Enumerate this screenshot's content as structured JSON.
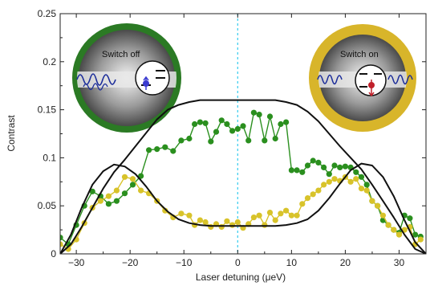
{
  "chart_data": {
    "type": "scatter",
    "xlabel": "Laser detuning (μeV)",
    "ylabel": "Contrast",
    "xlim": [
      -33,
      35
    ],
    "ylim": [
      0,
      0.25
    ],
    "x_ticks": [
      -30,
      -20,
      -10,
      0,
      10,
      20,
      30
    ],
    "x_tick_labels": [
      "−30",
      "−20",
      "−10",
      "0",
      "10",
      "20",
      "30"
    ],
    "y_ticks": [
      0,
      0.05,
      0.1,
      0.15,
      0.2,
      0.25
    ],
    "y_tick_labels": [
      "0",
      "0.05",
      "0.1",
      "0.15",
      "0.2",
      "0.25"
    ],
    "grid": false,
    "vline": {
      "x": 0,
      "color": "#33ccee",
      "style": "dashed"
    },
    "series": [
      {
        "color": "#2a8f1e",
        "style": "line+markers",
        "x": [
          -33,
          -31.5,
          -30,
          -28.5,
          -27,
          -25.5,
          -24,
          -22.5,
          -21,
          -19.5,
          -18,
          -16.5,
          -15,
          -13.5,
          -12,
          -10.5,
          -9,
          -8,
          -7,
          -6,
          -5,
          -4,
          -3,
          -2,
          -1,
          0,
          1,
          2,
          3,
          4,
          5,
          6,
          7,
          8,
          9,
          10,
          11,
          12,
          13,
          14,
          15,
          16,
          17,
          18,
          19,
          20,
          21,
          22,
          23,
          24,
          25,
          26,
          27,
          28,
          29,
          30,
          31,
          32,
          33,
          34
        ],
        "y": [
          0.017,
          0.01,
          0.03,
          0.05,
          0.065,
          0.06,
          0.052,
          0.055,
          0.063,
          0.072,
          0.081,
          0.108,
          0.109,
          0.111,
          0.107,
          0.118,
          0.12,
          0.135,
          0.137,
          0.136,
          0.117,
          0.127,
          0.139,
          0.135,
          0.128,
          0.13,
          0.133,
          0.118,
          0.147,
          0.145,
          0.118,
          0.143,
          0.12,
          0.135,
          0.137,
          0.087,
          0.087,
          0.085,
          0.092,
          0.097,
          0.095,
          0.09,
          0.083,
          0.092,
          0.09,
          0.091,
          0.09,
          0.085,
          0.08,
          0.072,
          0.055,
          0.05,
          0.035,
          0.03,
          0.025,
          0.022,
          0.04,
          0.037,
          0.02,
          0.018
        ]
      },
      {
        "color": "#d8c32a",
        "style": "line+markers",
        "x": [
          -33,
          -31.5,
          -30,
          -28.5,
          -27,
          -25.5,
          -24,
          -22.5,
          -21,
          -19.5,
          -18,
          -16.5,
          -15,
          -13.5,
          -12,
          -10.5,
          -9,
          -8,
          -7,
          -6,
          -5,
          -4,
          -3,
          -2,
          -1,
          0,
          1,
          2,
          3,
          4,
          5,
          6,
          7,
          8,
          9,
          10,
          11,
          12,
          13,
          14,
          15,
          16,
          17,
          18,
          19,
          20,
          21,
          22,
          23,
          24,
          25,
          26,
          27,
          28,
          29,
          30,
          31,
          32,
          33,
          34
        ],
        "y": [
          0.01,
          0.005,
          0.015,
          0.032,
          0.048,
          0.055,
          0.06,
          0.066,
          0.08,
          0.078,
          0.066,
          0.063,
          0.055,
          0.045,
          0.038,
          0.042,
          0.04,
          0.03,
          0.035,
          0.033,
          0.028,
          0.031,
          0.028,
          0.034,
          0.03,
          0.033,
          0.027,
          0.031,
          0.038,
          0.04,
          0.03,
          0.043,
          0.035,
          0.042,
          0.045,
          0.04,
          0.04,
          0.052,
          0.058,
          0.062,
          0.066,
          0.072,
          0.075,
          0.078,
          0.076,
          0.08,
          0.075,
          0.078,
          0.068,
          0.066,
          0.055,
          0.05,
          0.04,
          0.03,
          0.025,
          0.02,
          0.025,
          0.028,
          0.01,
          0.015
        ]
      },
      {
        "color": "#111111",
        "style": "line",
        "x": [
          -33,
          -31,
          -29,
          -27,
          -25,
          -23,
          -21,
          -19,
          -17,
          -15,
          -13,
          -11,
          -9,
          -7,
          -5,
          -3,
          -1,
          1,
          3,
          5,
          7,
          9,
          11,
          13,
          15,
          17,
          19,
          21,
          23,
          25,
          27,
          29,
          31,
          33,
          35
        ],
        "y": [
          0.0,
          0.01,
          0.028,
          0.048,
          0.068,
          0.085,
          0.098,
          0.112,
          0.126,
          0.14,
          0.15,
          0.155,
          0.158,
          0.16,
          0.16,
          0.16,
          0.16,
          0.16,
          0.16,
          0.16,
          0.16,
          0.158,
          0.155,
          0.148,
          0.138,
          0.125,
          0.112,
          0.1,
          0.088,
          0.072,
          0.055,
          0.038,
          0.02,
          0.005,
          0.0
        ]
      },
      {
        "color": "#111111",
        "style": "line",
        "x": [
          -33,
          -31,
          -29,
          -27,
          -25,
          -23,
          -21,
          -19,
          -17,
          -15,
          -13,
          -11,
          -9,
          -7,
          -5,
          -3,
          -1,
          1,
          3,
          5,
          7,
          9,
          11,
          13,
          15,
          17,
          19,
          21,
          23,
          25,
          27,
          29,
          31,
          33,
          35
        ],
        "y": [
          0.0,
          0.02,
          0.048,
          0.072,
          0.086,
          0.093,
          0.091,
          0.083,
          0.07,
          0.055,
          0.044,
          0.036,
          0.032,
          0.03,
          0.029,
          0.029,
          0.029,
          0.029,
          0.029,
          0.029,
          0.029,
          0.03,
          0.032,
          0.036,
          0.045,
          0.058,
          0.073,
          0.087,
          0.094,
          0.092,
          0.08,
          0.06,
          0.035,
          0.012,
          0.0
        ]
      }
    ],
    "insets": [
      {
        "label": "Switch off",
        "ring_color": "#2b7a24"
      },
      {
        "label": "Switch on",
        "ring_color": "#d8b52a"
      }
    ]
  }
}
